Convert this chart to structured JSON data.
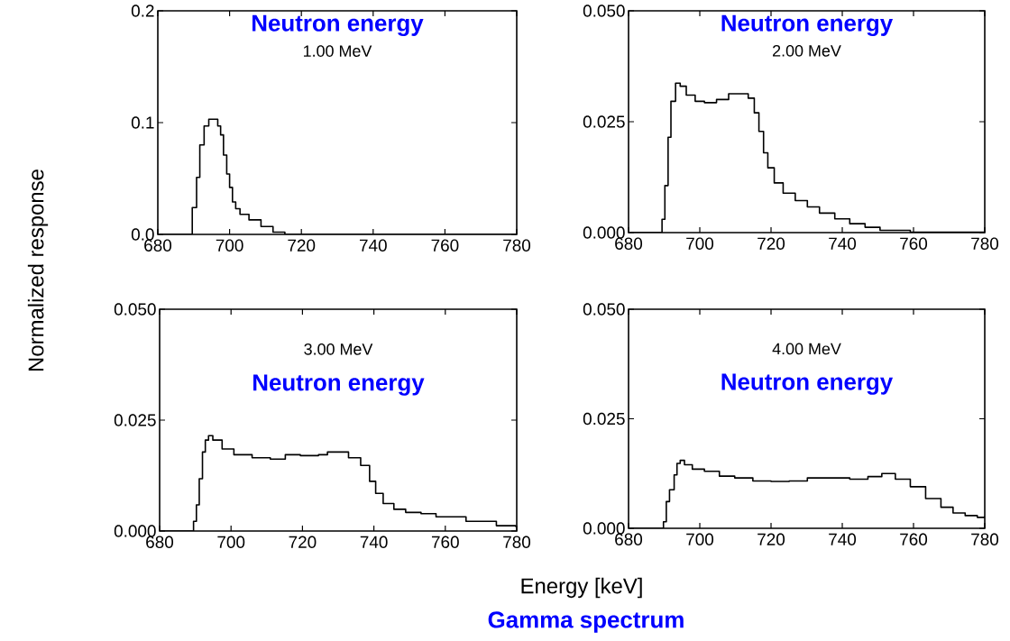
{
  "chart_data": [
    {
      "type": "step",
      "title": "Neutron energy",
      "subtitle": "1.00 MeV",
      "ylabel": "Normalized response",
      "color": "#000000",
      "x": [
        680,
        688.75,
        689.6,
        690.8,
        691.7,
        692.9,
        694.2,
        695.4,
        696.7,
        697.5,
        698.3,
        699.2,
        700,
        700.8,
        701.7,
        702.9,
        705.4,
        708.75,
        712.1,
        715.4,
        780
      ],
      "values": [
        0,
        0,
        0.024,
        0.051,
        0.08,
        0.097,
        0.103,
        0.103,
        0.097,
        0.089,
        0.071,
        0.054,
        0.042,
        0.029,
        0.023,
        0.018,
        0.013,
        0.007,
        0.002,
        0,
        0
      ],
      "xlim": [
        680,
        780
      ],
      "ylim": [
        0,
        0.2
      ],
      "xticks": [
        680,
        700,
        720,
        740,
        760,
        780
      ],
      "yticks": [
        {
          "value": 0,
          "label": "0.0"
        },
        {
          "value": 0.1,
          "label": "0.1"
        },
        {
          "value": 0.2,
          "label": "0.2"
        }
      ]
    },
    {
      "type": "step",
      "title": "Neutron energy",
      "subtitle": "2.00 MeV",
      "color": "#000000",
      "x": [
        680,
        688.5,
        689.4,
        690.2,
        691.1,
        691.9,
        693.2,
        694.5,
        696.2,
        698.7,
        701.3,
        704.7,
        708.1,
        711.5,
        713.6,
        715.3,
        716.6,
        717.9,
        719.1,
        720.9,
        723.4,
        726.8,
        730.2,
        733.6,
        737.9,
        742.1,
        746.4,
        750.6,
        759.1,
        780
      ],
      "values": [
        0,
        0,
        0.003,
        0.0106,
        0.0215,
        0.0296,
        0.0337,
        0.033,
        0.031,
        0.0296,
        0.0293,
        0.03,
        0.0313,
        0.0313,
        0.0303,
        0.027,
        0.0228,
        0.018,
        0.0146,
        0.0112,
        0.0089,
        0.0072,
        0.0058,
        0.0044,
        0.0031,
        0.002,
        0.0012,
        0.0005,
        0.0001,
        0
      ],
      "xlim": [
        680,
        780
      ],
      "ylim": [
        0,
        0.05
      ],
      "xticks": [
        680,
        700,
        720,
        740,
        760,
        780
      ],
      "yticks": [
        {
          "value": 0,
          "label": "0.000"
        },
        {
          "value": 0.025,
          "label": "0.025"
        },
        {
          "value": 0.05,
          "label": "0.050"
        }
      ]
    },
    {
      "type": "step",
      "title": "Neutron energy",
      "subtitle": "3.00 MeV",
      "xlabel": "Energy [keV]",
      "annotations": [
        "Gamma spectrum"
      ],
      "color": "#000000",
      "x": [
        680,
        688.6,
        689.5,
        690.3,
        691.1,
        692,
        692.8,
        693.7,
        694.9,
        697.5,
        700.8,
        705.9,
        711,
        715.2,
        719.4,
        724.5,
        727,
        730.4,
        732.9,
        736.3,
        738.8,
        740.5,
        742.6,
        745.6,
        748.9,
        753.2,
        757.4,
        765.8,
        774.3,
        779.7
      ],
      "values": [
        0,
        0,
        0.0022,
        0.0059,
        0.0118,
        0.0178,
        0.0205,
        0.0215,
        0.0205,
        0.0185,
        0.0172,
        0.0165,
        0.0162,
        0.0172,
        0.017,
        0.0172,
        0.0178,
        0.0178,
        0.0165,
        0.0148,
        0.0112,
        0.0085,
        0.0062,
        0.0049,
        0.0042,
        0.0039,
        0.0032,
        0.0022,
        0.0012,
        0.0009
      ],
      "xlim": [
        680,
        780
      ],
      "ylim": [
        0,
        0.05
      ],
      "xticks": [
        680,
        700,
        720,
        740,
        760,
        780
      ],
      "yticks": [
        {
          "value": 0,
          "label": "0.000"
        },
        {
          "value": 0.025,
          "label": "0.025"
        },
        {
          "value": 0.05,
          "label": "0.050"
        }
      ]
    },
    {
      "type": "step",
      "title": "Neutron energy",
      "subtitle": "4.00 MeV",
      "color": "#000000",
      "x": [
        680,
        688.9,
        689.8,
        690.6,
        691.5,
        692.8,
        693.6,
        694.5,
        695.7,
        697.9,
        701.3,
        705.5,
        709.8,
        714.9,
        720,
        725.1,
        730.2,
        735.3,
        742.1,
        747.2,
        751.1,
        754.9,
        759.1,
        763.4,
        767.7,
        771.1,
        774.5,
        777.9,
        780
      ],
      "values": [
        0,
        0,
        0.0015,
        0.0061,
        0.0088,
        0.0122,
        0.0148,
        0.0155,
        0.0145,
        0.0135,
        0.013,
        0.0119,
        0.0115,
        0.0108,
        0.0107,
        0.0108,
        0.0115,
        0.0115,
        0.0112,
        0.0118,
        0.0125,
        0.0112,
        0.0095,
        0.0068,
        0.0048,
        0.0035,
        0.0029,
        0.0025,
        0.0028
      ],
      "xlim": [
        680,
        780
      ],
      "ylim": [
        0,
        0.05
      ],
      "xticks": [
        680,
        700,
        720,
        740,
        760,
        780
      ],
      "yticks": [
        {
          "value": 0,
          "label": "0.000"
        },
        {
          "value": 0.025,
          "label": "0.025"
        },
        {
          "value": 0.05,
          "label": "0.050"
        }
      ]
    }
  ]
}
